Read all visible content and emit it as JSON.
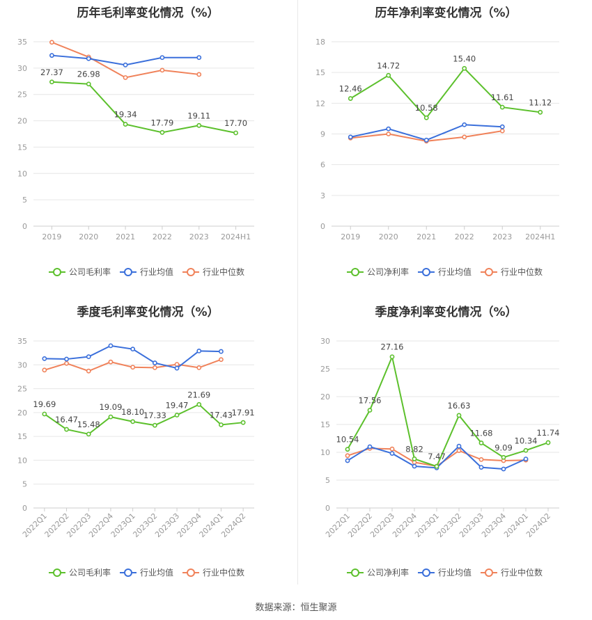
{
  "footer": "数据来源：恒生聚源",
  "colors": {
    "company": "#5cc02c",
    "industry_avg": "#3a6fdb",
    "industry_median": "#f0825a"
  },
  "chart_data": [
    {
      "type": "line",
      "title": "历年毛利率变化情况（%）",
      "categories": [
        "2019",
        "2020",
        "2021",
        "2022",
        "2023",
        "2024H1"
      ],
      "ylim": [
        0,
        35
      ],
      "yticks": [
        0,
        5,
        10,
        15,
        20,
        25,
        30,
        35
      ],
      "series": [
        {
          "name": "公司毛利率",
          "values": [
            27.37,
            26.98,
            19.34,
            17.79,
            19.11,
            17.7
          ],
          "labels": [
            "27.37",
            "26.98",
            "19.34",
            "17.79",
            "19.11",
            "17.70"
          ]
        },
        {
          "name": "行业均值",
          "values": [
            32.4,
            31.8,
            30.6,
            32.0,
            32.0,
            null
          ]
        },
        {
          "name": "行业中位数",
          "values": [
            34.9,
            32.1,
            28.2,
            29.6,
            28.8,
            null
          ]
        }
      ]
    },
    {
      "type": "line",
      "title": "历年净利率变化情况（%）",
      "categories": [
        "2019",
        "2020",
        "2021",
        "2022",
        "2023",
        "2024H1"
      ],
      "ylim": [
        0,
        18
      ],
      "yticks": [
        0,
        3,
        6,
        9,
        12,
        15,
        18
      ],
      "series": [
        {
          "name": "公司净利率",
          "values": [
            12.46,
            14.72,
            10.58,
            15.4,
            11.61,
            11.12
          ],
          "labels": [
            "12.46",
            "14.72",
            "10.58",
            "15.40",
            "11.61",
            "11.12"
          ]
        },
        {
          "name": "行业均值",
          "values": [
            8.7,
            9.5,
            8.4,
            9.9,
            9.7,
            null
          ]
        },
        {
          "name": "行业中位数",
          "values": [
            8.6,
            9.0,
            8.3,
            8.7,
            9.3,
            null
          ]
        }
      ]
    },
    {
      "type": "line",
      "title": "季度毛利率变化情况（%）",
      "categories": [
        "2022Q1",
        "2022Q2",
        "2022Q3",
        "2022Q4",
        "2023Q1",
        "2023Q2",
        "2023Q3",
        "2023Q4",
        "2024Q1",
        "2024Q2"
      ],
      "ylim": [
        0,
        35
      ],
      "yticks": [
        0,
        5,
        10,
        15,
        20,
        25,
        30,
        35
      ],
      "series": [
        {
          "name": "公司毛利率",
          "values": [
            19.69,
            16.47,
            15.48,
            19.09,
            18.1,
            17.33,
            19.47,
            21.69,
            17.43,
            17.91
          ],
          "labels": [
            "19.69",
            "16.47",
            "15.48",
            "19.09",
            "18.10",
            "17.33",
            "19.47",
            "21.69",
            "17.43",
            "17.91"
          ]
        },
        {
          "name": "行业均值",
          "values": [
            31.3,
            31.2,
            31.7,
            34.0,
            33.3,
            30.4,
            29.3,
            32.9,
            32.8,
            null
          ]
        },
        {
          "name": "行业中位数",
          "values": [
            28.9,
            30.3,
            28.7,
            30.6,
            29.5,
            29.4,
            30.1,
            29.4,
            31.1,
            null
          ]
        }
      ]
    },
    {
      "type": "line",
      "title": "季度净利率变化情况（%）",
      "categories": [
        "2022Q1",
        "2022Q2",
        "2022Q3",
        "2022Q4",
        "2023Q1",
        "2023Q2",
        "2023Q3",
        "2023Q4",
        "2024Q1",
        "2024Q2"
      ],
      "ylim": [
        0,
        30
      ],
      "yticks": [
        0,
        5,
        10,
        15,
        20,
        25,
        30
      ],
      "series": [
        {
          "name": "公司净利率",
          "values": [
            10.54,
            17.56,
            27.16,
            8.82,
            7.47,
            16.63,
            11.68,
            9.09,
            10.34,
            11.74
          ],
          "labels": [
            "10.54",
            "17.56",
            "27.16",
            "8.82",
            "7.47",
            "16.63",
            "11.68",
            "9.09",
            "10.34",
            "11.74"
          ]
        },
        {
          "name": "行业均值",
          "values": [
            8.5,
            11.0,
            9.8,
            7.5,
            7.2,
            11.1,
            7.3,
            7.0,
            8.8,
            null
          ]
        },
        {
          "name": "行业中位数",
          "values": [
            9.4,
            10.7,
            10.6,
            8.2,
            7.5,
            10.3,
            8.7,
            8.5,
            8.6,
            null
          ]
        }
      ]
    }
  ]
}
